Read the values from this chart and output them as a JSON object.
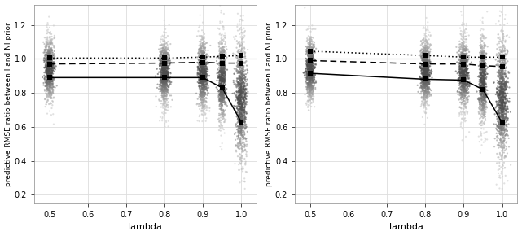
{
  "xlim": [
    0.46,
    1.04
  ],
  "ylim": [
    0.15,
    1.32
  ],
  "yticks": [
    0.2,
    0.4,
    0.6,
    0.8,
    1.0,
    1.2
  ],
  "xticks": [
    0.5,
    0.6,
    0.7,
    0.8,
    0.9,
    1.0
  ],
  "xlabel": "lambda",
  "ylabel": "predictive RMSE ratio between I and NI prior",
  "hline_y": 1.0,
  "bg_color": "#ffffff",
  "plot_bg_color": "#ffffff",
  "grid_color": "#dddddd",
  "panel_left": {
    "solid_line_x": [
      0.5,
      0.8,
      0.9,
      0.95,
      1.0
    ],
    "solid_line_y": [
      0.89,
      0.89,
      0.89,
      0.83,
      0.63
    ],
    "dashed_line_x": [
      0.5,
      0.8,
      0.9,
      0.95,
      1.0
    ],
    "dashed_line_y": [
      0.97,
      0.975,
      0.98,
      0.975,
      0.975
    ],
    "dotted_line_x": [
      0.5,
      0.8,
      0.9,
      0.95,
      1.0
    ],
    "dotted_line_y": [
      1.005,
      1.005,
      1.01,
      1.015,
      1.02
    ]
  },
  "panel_right": {
    "solid_line_x": [
      0.5,
      0.8,
      0.9,
      0.95,
      1.0
    ],
    "solid_line_y": [
      0.915,
      0.88,
      0.875,
      0.82,
      0.625
    ],
    "dashed_line_x": [
      0.5,
      0.8,
      0.9,
      0.95,
      1.0
    ],
    "dashed_line_y": [
      0.99,
      0.97,
      0.97,
      0.96,
      0.955
    ],
    "dotted_line_x": [
      0.5,
      0.8,
      0.9,
      0.95,
      1.0
    ],
    "dotted_line_y": [
      1.045,
      1.02,
      1.01,
      1.01,
      1.01
    ]
  },
  "scatter_params": {
    "0.5": {
      "n": 800,
      "mean": 0.94,
      "std": 0.1,
      "jitter": 0.006
    },
    "0.8": {
      "n": 900,
      "mean": 0.92,
      "std": 0.1,
      "jitter": 0.006
    },
    "0.9": {
      "n": 900,
      "mean": 0.91,
      "std": 0.11,
      "jitter": 0.006
    },
    "0.95": {
      "n": 700,
      "mean": 0.87,
      "std": 0.13,
      "jitter": 0.005
    },
    "1.0": {
      "n": 1000,
      "mean": 0.76,
      "std": 0.19,
      "jitter": 0.007
    }
  },
  "seed": 42,
  "figsize": [
    6.41,
    2.9
  ],
  "dpi": 100
}
